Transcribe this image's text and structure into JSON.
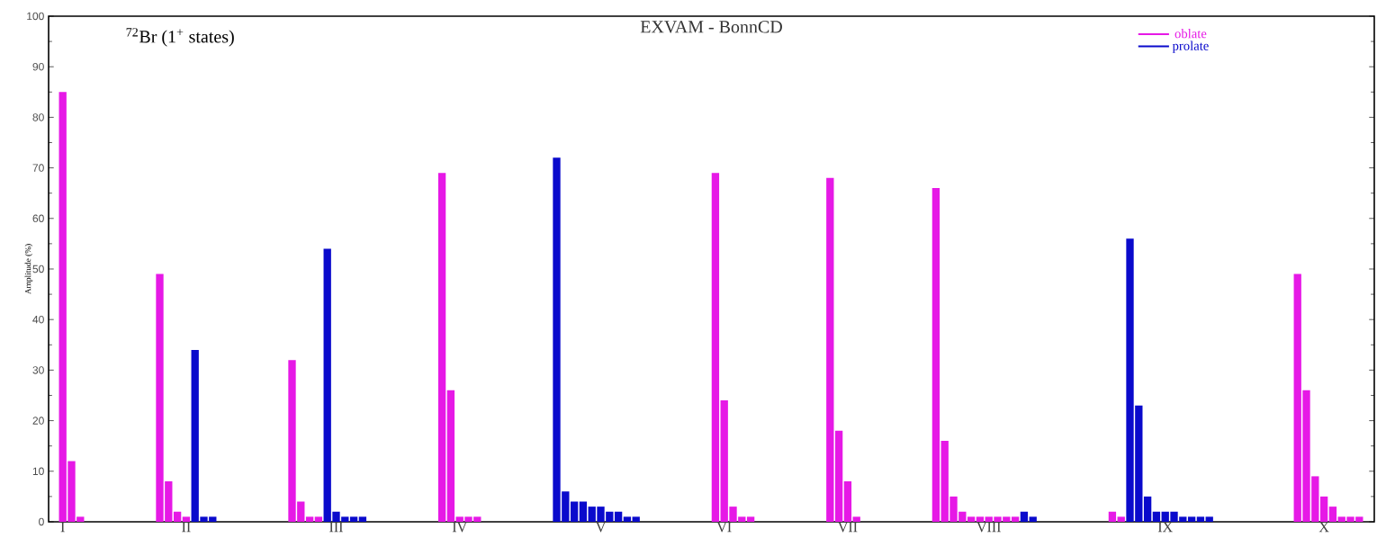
{
  "chart_data": {
    "type": "bar",
    "title": "EXVAM - BonnCD",
    "ylabel": "Amplitude (%)",
    "annotations": [
      "$^{72}$Br  (1$^{+}$ states)"
    ],
    "categories": [
      "I",
      null,
      null,
      null,
      null,
      null,
      null,
      null,
      null,
      null,
      null,
      null,
      null,
      null,
      "II",
      null,
      null,
      null,
      null,
      null,
      null,
      null,
      null,
      null,
      null,
      null,
      null,
      null,
      null,
      null,
      null,
      "III",
      null,
      null,
      null,
      null,
      null,
      null,
      null,
      null,
      null,
      null,
      null,
      null,
      null,
      "IV",
      null,
      null,
      null,
      null,
      null,
      null,
      null,
      null,
      null,
      null,
      null,
      null,
      null,
      null,
      null,
      "V",
      null,
      null,
      null,
      null,
      null,
      null,
      null,
      null,
      null,
      null,
      null,
      null,
      null,
      "VI",
      null,
      null,
      null,
      null,
      null,
      null,
      null,
      null,
      null,
      null,
      null,
      null,
      null,
      "VII",
      null,
      null,
      null,
      null,
      null,
      null,
      null,
      null,
      null,
      null,
      null,
      null,
      null,
      null,
      null,
      "VIII",
      null,
      null,
      null,
      null,
      null,
      null,
      null,
      null,
      null,
      null,
      null,
      null,
      null,
      null,
      null,
      null,
      null,
      null,
      null,
      "IX",
      null,
      null,
      null,
      null,
      null,
      null,
      null,
      null,
      null,
      null,
      null,
      null,
      null,
      null,
      null,
      null,
      null,
      "X",
      null,
      null,
      null,
      null
    ],
    "ylim": [
      0,
      100
    ],
    "yticks": [
      0,
      10,
      20,
      30,
      40,
      50,
      60,
      70,
      80,
      90,
      100
    ],
    "legend": "top right",
    "grid": false,
    "series": [
      {
        "name": "oblate",
        "color": "#e619e6",
        "values": [
          85,
          12,
          1,
          null,
          null,
          null,
          null,
          null,
          null,
          null,
          null,
          49,
          8,
          2,
          1,
          null,
          null,
          null,
          null,
          null,
          null,
          null,
          null,
          null,
          null,
          null,
          32,
          4,
          1,
          1,
          null,
          null,
          null,
          null,
          null,
          null,
          null,
          null,
          null,
          null,
          null,
          null,
          null,
          69,
          26,
          1,
          1,
          1,
          null,
          null,
          null,
          null,
          null,
          null,
          null,
          null,
          null,
          null,
          null,
          null,
          null,
          null,
          null,
          null,
          null,
          null,
          null,
          null,
          null,
          null,
          null,
          null,
          null,
          null,
          69,
          24,
          3,
          1,
          1,
          null,
          null,
          null,
          null,
          null,
          null,
          null,
          null,
          68,
          18,
          8,
          1,
          null,
          null,
          null,
          null,
          null,
          null,
          null,
          null,
          66,
          16,
          5,
          2,
          1,
          1,
          1,
          1,
          1,
          1,
          null,
          null,
          null,
          null,
          null,
          null,
          null,
          null,
          null,
          null,
          2,
          1,
          null,
          null,
          null,
          null,
          null,
          null,
          null,
          null,
          null,
          null,
          null,
          null,
          null,
          null,
          null,
          null,
          null,
          null,
          null,
          49,
          26,
          9,
          5,
          3,
          1,
          1,
          1
        ]
      },
      {
        "name": "prolate",
        "color": "#0a0acc",
        "values": [
          null,
          null,
          null,
          null,
          null,
          null,
          null,
          null,
          null,
          null,
          null,
          null,
          null,
          null,
          null,
          34,
          1,
          1,
          null,
          null,
          null,
          null,
          null,
          null,
          null,
          null,
          null,
          null,
          null,
          null,
          54,
          2,
          1,
          1,
          1,
          null,
          null,
          null,
          null,
          null,
          null,
          null,
          null,
          null,
          null,
          null,
          null,
          null,
          null,
          null,
          null,
          null,
          null,
          null,
          null,
          null,
          72,
          6,
          4,
          4,
          3,
          3,
          2,
          2,
          1,
          1,
          null,
          null,
          null,
          null,
          null,
          null,
          null,
          null,
          null,
          null,
          null,
          null,
          null,
          null,
          null,
          null,
          null,
          null,
          null,
          null,
          null,
          null,
          null,
          null,
          null,
          null,
          null,
          null,
          null,
          null,
          null,
          null,
          null,
          null,
          null,
          null,
          null,
          null,
          null,
          null,
          null,
          null,
          null,
          2,
          1,
          null,
          null,
          null,
          null,
          null,
          null,
          null,
          null,
          null,
          null,
          56,
          23,
          5,
          2,
          2,
          2,
          1,
          1,
          1,
          1,
          null,
          null,
          null,
          null,
          null,
          null,
          null,
          null,
          null,
          null,
          null,
          null,
          null,
          null,
          null,
          null,
          null
        ]
      }
    ]
  }
}
